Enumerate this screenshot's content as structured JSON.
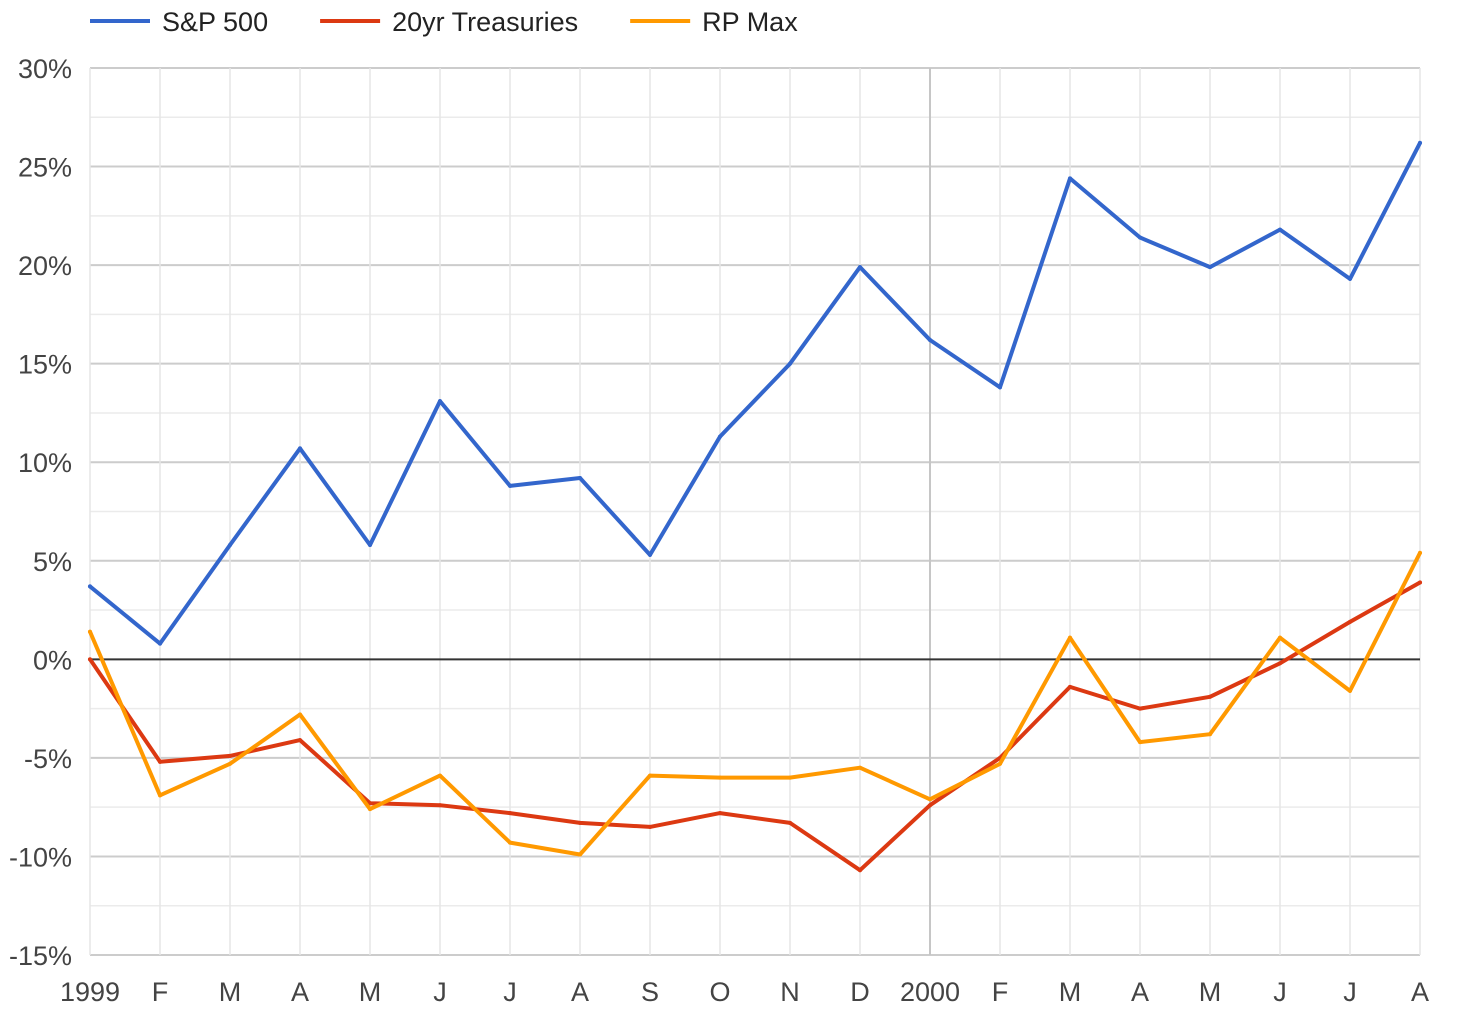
{
  "chart_data": {
    "type": "line",
    "categories": [
      "1999",
      "F",
      "M",
      "A",
      "M",
      "J",
      "J",
      "A",
      "S",
      "O",
      "N",
      "D",
      "2000",
      "F",
      "M",
      "A",
      "M",
      "J",
      "J",
      "A"
    ],
    "y_ticks": [
      "30%",
      "25%",
      "20%",
      "15%",
      "10%",
      "5%",
      "0%",
      "-5%",
      "-10%",
      "-15%"
    ],
    "ylim": [
      -15,
      30
    ],
    "y_unit": "%",
    "grid": true,
    "legend_position": "top-left",
    "series": [
      {
        "name": "S&P 500",
        "color": "#3366cc",
        "values": [
          3.7,
          0.8,
          5.8,
          10.7,
          5.8,
          13.1,
          8.8,
          9.2,
          5.3,
          11.3,
          15.0,
          19.9,
          16.2,
          13.8,
          24.4,
          21.4,
          19.9,
          21.8,
          19.3,
          26.2
        ]
      },
      {
        "name": "20yr Treasuries",
        "color": "#dc3912",
        "values": [
          0.0,
          -5.2,
          -4.9,
          -4.1,
          -7.3,
          -7.4,
          -7.8,
          -8.3,
          -8.5,
          -7.8,
          -8.3,
          -10.7,
          -7.4,
          -5.0,
          -1.4,
          -2.5,
          -1.9,
          -0.2,
          1.9,
          3.9
        ]
      },
      {
        "name": "RP Max",
        "color": "#ff9900",
        "values": [
          1.4,
          -6.9,
          -5.3,
          -2.8,
          -7.6,
          -5.9,
          -9.3,
          -9.9,
          -5.9,
          -6.0,
          -6.0,
          -5.5,
          -7.1,
          -5.3,
          1.1,
          -4.2,
          -3.8,
          1.1,
          -1.6,
          5.4
        ]
      }
    ]
  }
}
